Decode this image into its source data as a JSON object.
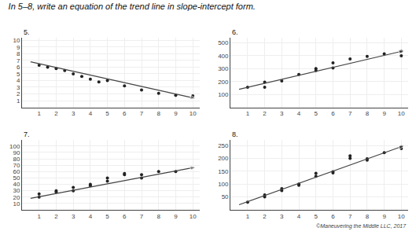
{
  "title": "In 5–8, write an equation of the trend line in slope-intercept form.",
  "annotations": [
    "©Maneuvering the Middle LLC, 2017"
  ],
  "chart_data": [
    {
      "type": "scatter",
      "title": "5.",
      "grid": true,
      "xlim": [
        0,
        10.4
      ],
      "ylim": [
        0,
        10.4
      ],
      "xticks": [
        1,
        2,
        3,
        4,
        5,
        6,
        7,
        8,
        9,
        10
      ],
      "yticks": [
        1,
        2,
        3,
        4,
        5,
        6,
        7,
        8,
        9,
        10
      ],
      "series": [
        {
          "type": "scatter",
          "color": "#222222",
          "x": [
            1,
            1.5,
            2,
            2.5,
            3,
            3.5,
            4,
            4.5,
            5,
            6,
            7,
            8,
            9,
            10
          ],
          "values": [
            6.3,
            6.0,
            5.8,
            5.5,
            5.0,
            4.6,
            4.2,
            3.8,
            4.0,
            3.2,
            2.6,
            2.1,
            1.8,
            1.7
          ]
        },
        {
          "type": "line",
          "color": "#444444",
          "marker": "arrow",
          "x": [
            0.5,
            10.2
          ],
          "values": [
            6.8,
            1.3
          ]
        }
      ]
    },
    {
      "type": "scatter",
      "title": "6.",
      "grid": true,
      "xlim": [
        0,
        10.4
      ],
      "ylim": [
        0,
        540
      ],
      "xticks": [
        1,
        2,
        3,
        4,
        5,
        6,
        7,
        8,
        9,
        10
      ],
      "yticks": [
        100,
        200,
        300,
        400,
        500
      ],
      "series": [
        {
          "type": "scatter",
          "color": "#222222",
          "x": [
            1,
            2,
            2,
            3,
            4,
            5,
            5,
            6,
            6,
            7,
            8,
            9,
            10,
            10
          ],
          "values": [
            155,
            195,
            155,
            205,
            255,
            300,
            285,
            345,
            305,
            375,
            395,
            415,
            400,
            435
          ]
        },
        {
          "type": "line",
          "color": "#444444",
          "marker": "arrow",
          "x": [
            0.5,
            10.2
          ],
          "values": [
            140,
            440
          ]
        }
      ]
    },
    {
      "type": "scatter",
      "title": "7.",
      "grid": true,
      "xlim": [
        0,
        10.4
      ],
      "ylim": [
        0,
        109
      ],
      "xticks": [
        1,
        2,
        3,
        4,
        5,
        6,
        7,
        8,
        9,
        10
      ],
      "yticks": [
        10,
        20,
        30,
        40,
        50,
        60,
        70,
        80,
        90,
        100
      ],
      "series": [
        {
          "type": "scatter",
          "color": "#222222",
          "x": [
            1,
            1,
            2,
            2,
            3,
            3,
            4,
            4,
            5,
            5,
            6,
            6,
            7,
            7,
            8,
            9
          ],
          "values": [
            20,
            25,
            30,
            28,
            30,
            35,
            40,
            38,
            45,
            50,
            55,
            57,
            50,
            55,
            60,
            60
          ]
        },
        {
          "type": "line",
          "color": "#444444",
          "marker": "arrow",
          "x": [
            0.5,
            10.2
          ],
          "values": [
            18,
            67
          ]
        }
      ]
    },
    {
      "type": "scatter",
      "title": "8.",
      "grid": true,
      "xlim": [
        0,
        10.4
      ],
      "ylim": [
        0,
        270
      ],
      "xticks": [
        1,
        2,
        3,
        4,
        5,
        6,
        7,
        8,
        9,
        10
      ],
      "yticks": [
        50,
        100,
        150,
        200,
        250
      ],
      "series": [
        {
          "type": "scatter",
          "color": "#222222",
          "x": [
            1,
            2,
            2,
            3,
            3,
            4,
            4,
            5,
            5,
            6,
            6,
            7,
            7,
            8,
            8,
            9,
            10,
            10
          ],
          "values": [
            30,
            50,
            58,
            75,
            82,
            100,
            95,
            130,
            142,
            148,
            143,
            200,
            210,
            198,
            193,
            222,
            245,
            238
          ]
        },
        {
          "type": "line",
          "color": "#444444",
          "marker": "arrow",
          "x": [
            0.5,
            10.2
          ],
          "values": [
            20,
            250
          ]
        }
      ]
    }
  ]
}
